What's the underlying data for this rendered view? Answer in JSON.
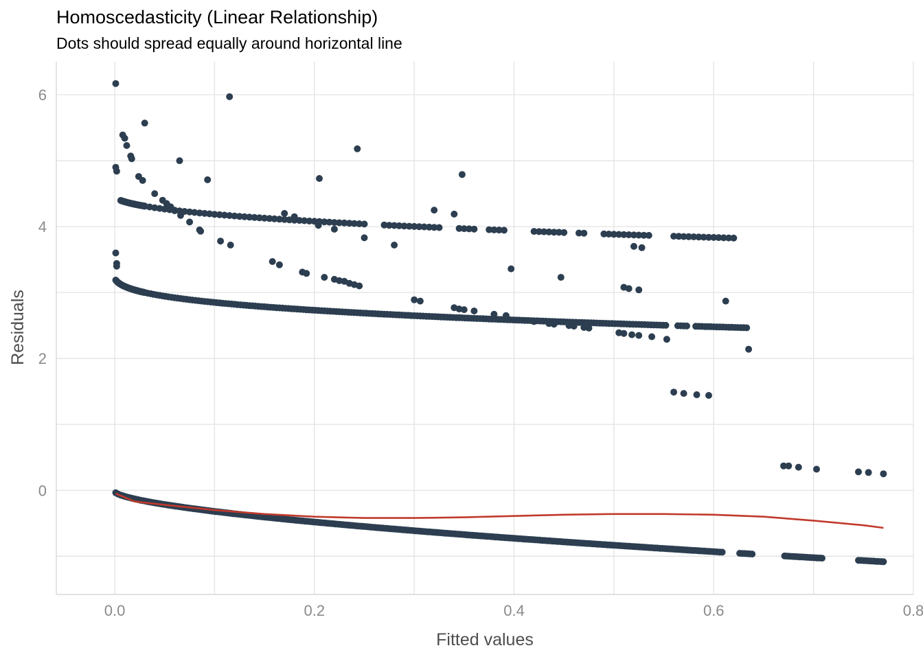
{
  "chart_data": {
    "type": "scatter",
    "title": "Homoscedasticity (Linear Relationship)",
    "subtitle": "Dots should spread equally around horizontal line",
    "xlabel": "Fitted values",
    "ylabel": "Residuals",
    "xlim": [
      -0.0585,
      0.8
    ],
    "ylim": [
      -1.58,
      6.5
    ],
    "x_ticks": [
      0.0,
      0.2,
      0.4,
      0.6,
      0.8
    ],
    "x_tick_labels": [
      "0.0",
      "0.2",
      "0.4",
      "0.6",
      "0.8"
    ],
    "y_ticks": [
      0,
      2,
      4,
      6
    ],
    "y_tick_labels": [
      "0",
      "2",
      "4",
      "6"
    ],
    "grid": true,
    "point_color": "#2c3e50",
    "line_color": "#c0392b",
    "series": [
      {
        "kind": "points",
        "points": [
          [
            0.001,
            6.17
          ],
          [
            0.115,
            5.97
          ],
          [
            0.03,
            5.57
          ],
          [
            0.008,
            5.39
          ],
          [
            0.01,
            5.34
          ],
          [
            0.012,
            5.23
          ],
          [
            0.016,
            5.07
          ],
          [
            0.017,
            5.03
          ],
          [
            0.243,
            5.18
          ],
          [
            0.065,
            5.0
          ],
          [
            0.001,
            4.9
          ],
          [
            0.002,
            4.84
          ],
          [
            0.024,
            4.76
          ],
          [
            0.028,
            4.7
          ],
          [
            0.093,
            4.71
          ],
          [
            0.205,
            4.73
          ],
          [
            0.348,
            4.79
          ],
          [
            0.04,
            4.5
          ],
          [
            0.048,
            4.4
          ],
          [
            0.052,
            4.35
          ],
          [
            0.056,
            4.3
          ],
          [
            0.06,
            4.24
          ],
          [
            0.066,
            4.17
          ],
          [
            0.075,
            4.07
          ],
          [
            0.085,
            3.95
          ],
          [
            0.086,
            3.93
          ],
          [
            0.17,
            4.2
          ],
          [
            0.18,
            4.15
          ],
          [
            0.204,
            4.02
          ],
          [
            0.22,
            3.96
          ],
          [
            0.32,
            4.25
          ],
          [
            0.34,
            4.19
          ],
          [
            0.106,
            3.78
          ],
          [
            0.116,
            3.72
          ],
          [
            0.25,
            3.83
          ],
          [
            0.28,
            3.72
          ],
          [
            0.52,
            3.7
          ],
          [
            0.528,
            3.68
          ],
          [
            0.158,
            3.47
          ],
          [
            0.165,
            3.42
          ],
          [
            0.188,
            3.31
          ],
          [
            0.192,
            3.29
          ],
          [
            0.21,
            3.23
          ],
          [
            0.22,
            3.2
          ],
          [
            0.225,
            3.18
          ],
          [
            0.23,
            3.17
          ],
          [
            0.235,
            3.14
          ],
          [
            0.24,
            3.12
          ],
          [
            0.245,
            3.1
          ],
          [
            0.397,
            3.36
          ],
          [
            0.447,
            3.23
          ],
          [
            0.51,
            3.08
          ],
          [
            0.515,
            3.06
          ],
          [
            0.525,
            3.04
          ],
          [
            0.3,
            2.89
          ],
          [
            0.306,
            2.87
          ],
          [
            0.34,
            2.77
          ],
          [
            0.345,
            2.75
          ],
          [
            0.35,
            2.74
          ],
          [
            0.36,
            2.72
          ],
          [
            0.38,
            2.67
          ],
          [
            0.392,
            2.65
          ],
          [
            0.612,
            2.87
          ],
          [
            0.42,
            2.56
          ],
          [
            0.435,
            2.53
          ],
          [
            0.44,
            2.52
          ],
          [
            0.455,
            2.5
          ],
          [
            0.46,
            2.49
          ],
          [
            0.47,
            2.47
          ],
          [
            0.475,
            2.46
          ],
          [
            0.505,
            2.39
          ],
          [
            0.51,
            2.38
          ],
          [
            0.518,
            2.36
          ],
          [
            0.525,
            2.35
          ],
          [
            0.538,
            2.33
          ],
          [
            0.553,
            2.29
          ],
          [
            0.635,
            2.14
          ],
          [
            0.001,
            3.6
          ],
          [
            0.002,
            3.44
          ],
          [
            0.002,
            3.4
          ],
          [
            0.56,
            1.49
          ],
          [
            0.57,
            1.47
          ],
          [
            0.583,
            1.45
          ],
          [
            0.595,
            1.44
          ],
          [
            0.67,
            0.37
          ],
          [
            0.675,
            0.37
          ],
          [
            0.685,
            0.35
          ],
          [
            0.703,
            0.32
          ],
          [
            0.745,
            0.28
          ],
          [
            0.755,
            0.27
          ],
          [
            0.77,
            0.25
          ]
        ]
      },
      {
        "kind": "curve",
        "segments": [
          {
            "x_from": 0.006,
            "x_to": 0.03,
            "step": 0.0005,
            "c": 4.53,
            "a": 0.0038,
            "k": 0.85,
            "p": 0.4
          },
          {
            "x_from": 0.03,
            "x_to": 0.62,
            "step": 0.005,
            "gaps": [
              [
                0.253,
                0.268
              ],
              [
                0.328,
                0.345
              ],
              [
                0.362,
                0.372
              ],
              [
                0.392,
                0.42
              ],
              [
                0.455,
                0.465
              ],
              [
                0.475,
                0.49
              ],
              [
                0.54,
                0.56
              ]
            ],
            "c": 4.53,
            "a": 0.0038,
            "k": 0.85,
            "p": 0.4
          }
        ]
      },
      {
        "kind": "curve",
        "segments": [
          {
            "x_from": 0.001,
            "x_to": 0.03,
            "step": 0.0004,
            "c": 3.33,
            "a": 0.0012,
            "k": 1.0,
            "p": 0.32
          },
          {
            "x_from": 0.03,
            "x_to": 0.635,
            "step": 0.003,
            "gaps": [
              [
                0.555,
                0.562
              ],
              [
                0.575,
                0.582
              ]
            ],
            "c": 3.33,
            "a": 0.0012,
            "k": 1.0,
            "p": 0.32
          }
        ]
      },
      {
        "kind": "curve",
        "segments": [
          {
            "x_from": 0.001,
            "x_to": 0.71,
            "step": 0.0025,
            "gaps": [
              [
                0.61,
                0.625
              ],
              [
                0.64,
                0.67
              ]
            ],
            "c": -0.02,
            "a": 0.0,
            "k": 1.25,
            "p": 0.62
          },
          {
            "x_from": 0.745,
            "x_to": 0.77,
            "step": 0.0025,
            "c": -0.02,
            "a": 0.0,
            "k": 1.25,
            "p": 0.62
          }
        ]
      }
    ],
    "smooth_line": [
      [
        0.001,
        -0.05
      ],
      [
        0.02,
        -0.17
      ],
      [
        0.05,
        -0.22
      ],
      [
        0.1,
        -0.3
      ],
      [
        0.15,
        -0.36
      ],
      [
        0.2,
        -0.4
      ],
      [
        0.25,
        -0.42
      ],
      [
        0.3,
        -0.42
      ],
      [
        0.35,
        -0.41
      ],
      [
        0.4,
        -0.39
      ],
      [
        0.45,
        -0.37
      ],
      [
        0.5,
        -0.36
      ],
      [
        0.55,
        -0.36
      ],
      [
        0.6,
        -0.37
      ],
      [
        0.65,
        -0.4
      ],
      [
        0.7,
        -0.46
      ],
      [
        0.75,
        -0.53
      ],
      [
        0.77,
        -0.57
      ]
    ]
  }
}
